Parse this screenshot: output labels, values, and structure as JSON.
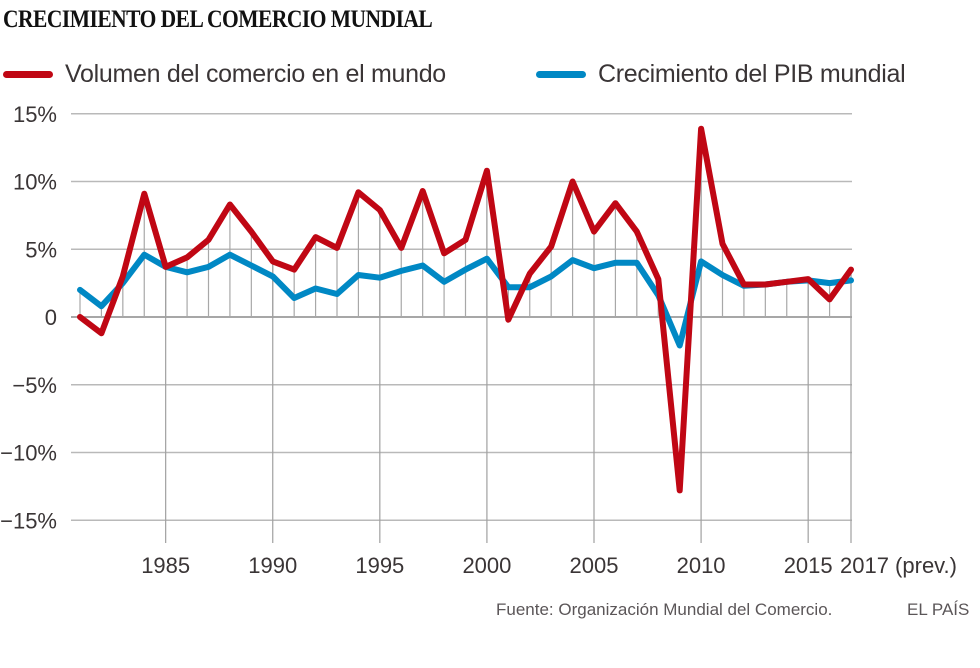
{
  "header": {
    "title": "CRECIMIENTO DEL COMERCIO MUNDIAL"
  },
  "legend": [
    {
      "label": "Volumen del comercio en el mundo",
      "color": "#c00714"
    },
    {
      "label": "Crecimiento del PIB mundial",
      "color": "#0088c4"
    }
  ],
  "footer": {
    "source": "Fuente: Organización Mundial del Comercio.",
    "brand": "EL PAÍS"
  },
  "chart_data": {
    "type": "line",
    "title": "CRECIMIENTO DEL COMERCIO MUNDIAL",
    "xlabel": "",
    "ylabel": "",
    "x": [
      1981,
      1982,
      1983,
      1984,
      1985,
      1986,
      1987,
      1988,
      1989,
      1990,
      1991,
      1992,
      1993,
      1994,
      1995,
      1996,
      1997,
      1998,
      1999,
      2000,
      2001,
      2002,
      2003,
      2004,
      2005,
      2006,
      2007,
      2008,
      2009,
      2010,
      2011,
      2012,
      2013,
      2014,
      2015,
      2016,
      2017
    ],
    "xlim": [
      1981,
      2017
    ],
    "ylim": [
      -15,
      15
    ],
    "yticks": [
      15,
      10,
      5,
      0,
      -5,
      -10,
      -15
    ],
    "ytick_labels": [
      "15%",
      "10%",
      "5%",
      "0",
      "−5%",
      "−10%",
      "−15%"
    ],
    "xticks": [
      1985,
      1990,
      1995,
      2000,
      2005,
      2010,
      2015,
      2017
    ],
    "xtick_labels": [
      "1985",
      "1990",
      "1995",
      "2000",
      "2005",
      "2010",
      "2015",
      "2017 (prev.)"
    ],
    "grid": "horizontal",
    "legend_position": "top",
    "series": [
      {
        "name": "Volumen del comercio en el mundo",
        "color": "#c00714",
        "values": [
          0.0,
          -1.2,
          3.0,
          9.1,
          3.7,
          4.4,
          5.7,
          8.3,
          6.3,
          4.1,
          3.5,
          5.9,
          5.1,
          9.2,
          7.9,
          5.1,
          9.3,
          4.7,
          5.7,
          10.8,
          -0.2,
          3.2,
          5.2,
          10.0,
          6.3,
          8.4,
          6.3,
          2.8,
          -12.8,
          13.9,
          5.4,
          2.4,
          2.4,
          2.6,
          2.8,
          1.3,
          3.5
        ]
      },
      {
        "name": "Crecimiento del PIB mundial",
        "color": "#0088c4",
        "values": [
          2.0,
          0.8,
          2.5,
          4.6,
          3.7,
          3.3,
          3.7,
          4.6,
          3.8,
          3.0,
          1.4,
          2.1,
          1.7,
          3.1,
          2.9,
          3.4,
          3.8,
          2.6,
          3.5,
          4.3,
          2.2,
          2.2,
          3.0,
          4.2,
          3.6,
          4.0,
          4.0,
          1.6,
          -2.1,
          4.1,
          3.1,
          2.3,
          2.4,
          2.6,
          2.7,
          2.5,
          2.7
        ]
      }
    ]
  }
}
